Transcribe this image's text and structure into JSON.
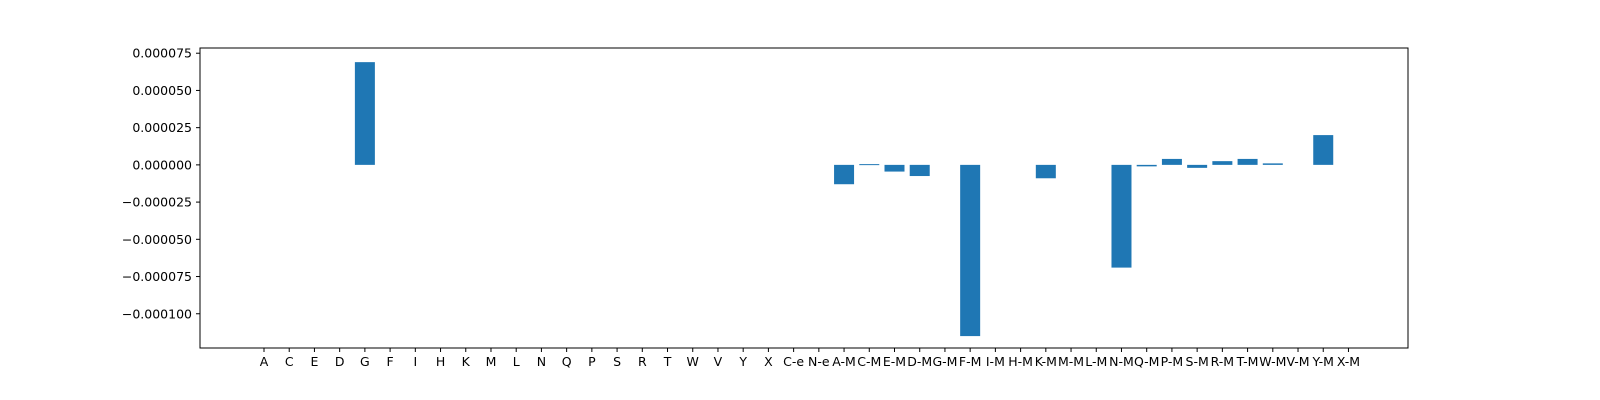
{
  "chart_data": {
    "type": "bar",
    "title": "",
    "xlabel": "",
    "ylabel": "",
    "ylim": [
      -0.000123,
      7.85e-05
    ],
    "grid": false,
    "legend": "none",
    "color": "#1f77b4",
    "categories": [
      "A",
      "C",
      "E",
      "D",
      "G",
      "F",
      "I",
      "H",
      "K",
      "M",
      "L",
      "N",
      "Q",
      "P",
      "S",
      "R",
      "T",
      "W",
      "V",
      "Y",
      "X",
      "C-e",
      "N-e",
      "A-M",
      "C-M",
      "E-M",
      "D-M",
      "G-M",
      "F-M",
      "I-M",
      "H-M",
      "K-M",
      "M-M",
      "L-M",
      "N-M",
      "Q-M",
      "P-M",
      "S-M",
      "R-M",
      "T-M",
      "W-M",
      "V-M",
      "Y-M",
      "X-M"
    ],
    "values": [
      0,
      0,
      0,
      0,
      6.9e-05,
      0,
      0,
      0,
      0,
      0,
      0,
      0,
      0,
      0,
      0,
      0,
      0,
      0,
      0,
      0,
      0,
      0,
      0,
      -1.3e-05,
      5e-07,
      -4.5e-06,
      -7.5e-06,
      0,
      -0.000115,
      0,
      0,
      -9e-06,
      0,
      0,
      -6.9e-05,
      -1e-06,
      4e-06,
      -2e-06,
      2.5e-06,
      4e-06,
      1e-06,
      0,
      2e-05,
      0
    ],
    "yticks": [
      -0.0001,
      -7.5e-05,
      -5e-05,
      -2.5e-05,
      0,
      2.5e-05,
      5e-05,
      7.5e-05
    ],
    "ytick_labels": [
      "−0.000100",
      "−0.000075",
      "−0.000050",
      "−0.000025",
      "0.000000",
      "0.000025",
      "0.000050",
      "0.000075"
    ]
  }
}
